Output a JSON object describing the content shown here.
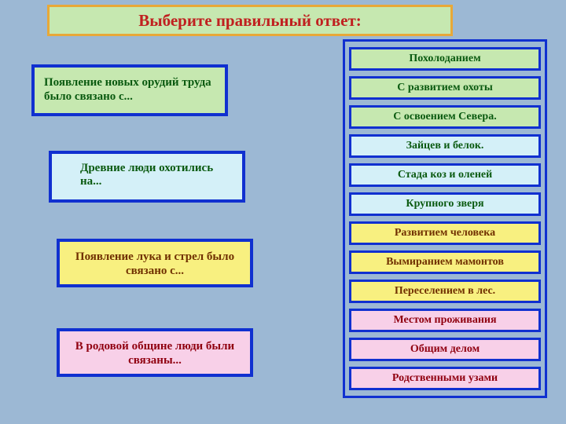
{
  "title": "Выберите правильный ответ:",
  "questions": {
    "q1": "Появление новых орудий труда было связано с...",
    "q2": "Древние люди охотились на...",
    "q3": "Появление лука и стрел было связано с...",
    "q4": "В родовой общине люди были связаны..."
  },
  "answers": [
    {
      "label": "Похолоданием",
      "group": "g1"
    },
    {
      "label": "С развитием охоты",
      "group": "g1"
    },
    {
      "label": "С освоением Севера.",
      "group": "g1"
    },
    {
      "label": "Зайцев и белок.",
      "group": "g2"
    },
    {
      "label": "Стада коз и оленей",
      "group": "g2"
    },
    {
      "label": "Крупного зверя",
      "group": "g2"
    },
    {
      "label": "Развитием человека",
      "group": "g3"
    },
    {
      "label": "Вымиранием мамонтов",
      "group": "g3"
    },
    {
      "label": "Переселением в лес.",
      "group": "g3"
    },
    {
      "label": "Местом проживания",
      "group": "g4"
    },
    {
      "label": "Общим делом",
      "group": "g4"
    },
    {
      "label": "Родственными узами",
      "group": "g4"
    }
  ],
  "colors": {
    "page_bg": "#9cb8d4",
    "border_blue": "#1030d0",
    "title_border": "#e8a838",
    "title_text": "#c02020",
    "g1_bg": "#c6e8b0",
    "g1_text": "#0a5a10",
    "g2_bg": "#d4f0f8",
    "g2_text": "#0a5a10",
    "g3_bg": "#f8f080",
    "g3_text": "#703000",
    "g4_bg": "#f8d0e8",
    "g4_text": "#900010"
  }
}
